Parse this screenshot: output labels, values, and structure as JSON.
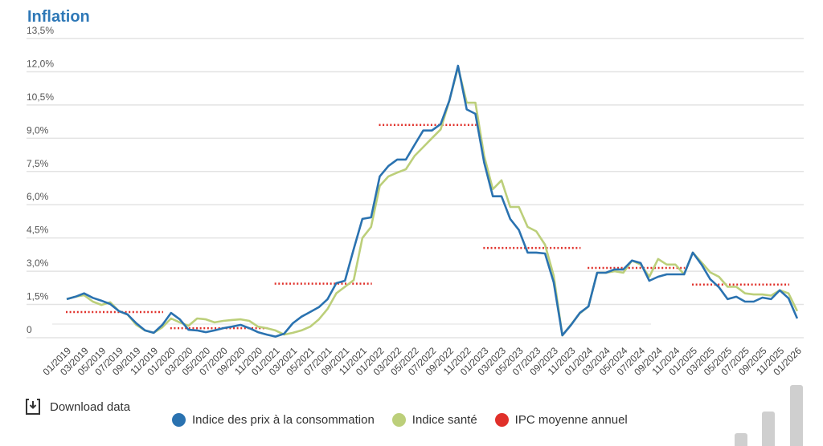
{
  "chart_data": {
    "type": "line",
    "title": "Inflation",
    "xlabel": "",
    "ylabel": "",
    "ylim": [
      0,
      13.5
    ],
    "y_ticks": [
      "0",
      "1,5%",
      "3,0%",
      "4,5%",
      "6,0%",
      "7,5%",
      "9,0%",
      "10,5%",
      "12,0%",
      "13,5%"
    ],
    "y_tick_values": [
      0,
      1.5,
      3,
      4.5,
      6,
      7.5,
      9,
      10.5,
      12,
      13.5
    ],
    "x_start": "01/2019",
    "x_end": "01/2026",
    "x_labels": [
      "01/2019",
      "03/2019",
      "05/2019",
      "07/2019",
      "09/2019",
      "11/2019",
      "01/2020",
      "03/2020",
      "05/2020",
      "07/2020",
      "09/2020",
      "11/2020",
      "01/2021",
      "03/2021",
      "05/2021",
      "07/2021",
      "09/2021",
      "11/2021",
      "01/2022",
      "03/2022",
      "05/2022",
      "07/2022",
      "09/2022",
      "11/2022",
      "01/2023",
      "03/2023",
      "05/2023",
      "07/2023",
      "09/2023",
      "11/2023",
      "01/2024",
      "03/2024",
      "05/2024",
      "07/2024",
      "09/2024",
      "11/2024",
      "01/2025",
      "03/2025",
      "05/2025",
      "07/2025",
      "09/2025",
      "11/2025",
      "01/2026"
    ],
    "grid": true,
    "legend_position": "bottom",
    "series": [
      {
        "name": "Indice des prix à la consommation",
        "color": "#2a72b0",
        "values": [
          1.74,
          1.85,
          2.0,
          1.8,
          1.67,
          1.52,
          1.2,
          1.05,
          0.65,
          0.33,
          0.22,
          0.58,
          1.12,
          0.83,
          0.36,
          0.33,
          0.25,
          0.33,
          0.43,
          0.5,
          0.58,
          0.43,
          0.25,
          0.14,
          0.05,
          0.18,
          0.65,
          0.95,
          1.16,
          1.38,
          1.74,
          2.46,
          2.57,
          4.0,
          5.36,
          5.43,
          7.28,
          7.75,
          8.04,
          8.04,
          8.7,
          9.35,
          9.35,
          9.64,
          10.7,
          12.27,
          10.3,
          10.1,
          7.9,
          6.38,
          6.38,
          5.36,
          4.86,
          3.84,
          3.84,
          3.8,
          2.5,
          0.11,
          0.58,
          1.12,
          1.41,
          2.93,
          2.93,
          3.08,
          3.08,
          3.48,
          3.37,
          2.57,
          2.75,
          2.86,
          2.86,
          2.86,
          3.84,
          3.3,
          2.64,
          2.28,
          1.74,
          1.85,
          1.63,
          1.63,
          1.81,
          1.74,
          2.14,
          1.78,
          0.87
        ]
      },
      {
        "name": "Indice santé",
        "color": "#bccf7a",
        "values": [
          1.74,
          1.85,
          1.92,
          1.63,
          1.48,
          1.6,
          1.2,
          1.05,
          0.58,
          0.33,
          0.22,
          0.47,
          0.87,
          0.69,
          0.54,
          0.87,
          0.83,
          0.69,
          0.76,
          0.8,
          0.83,
          0.76,
          0.5,
          0.43,
          0.33,
          0.14,
          0.22,
          0.33,
          0.5,
          0.83,
          1.3,
          2.0,
          2.3,
          2.6,
          4.5,
          5.0,
          6.85,
          7.28,
          7.45,
          7.6,
          8.2,
          8.6,
          9.0,
          9.4,
          10.7,
          12.2,
          10.6,
          10.6,
          8.2,
          6.7,
          7.1,
          5.9,
          5.9,
          5.0,
          4.8,
          4.2,
          2.8,
          0.1,
          0.6,
          1.1,
          1.41,
          2.93,
          2.93,
          3.0,
          2.93,
          3.48,
          3.3,
          2.75,
          3.55,
          3.3,
          3.3,
          2.86,
          3.84,
          3.4,
          2.95,
          2.75,
          2.3,
          2.3,
          2.0,
          1.95,
          1.95,
          1.9,
          2.14,
          2.0,
          1.2
        ]
      },
      {
        "name": "IPC moyenne annuel",
        "color": "#e0302a",
        "style": "dotted",
        "annual": [
          {
            "year": 2019,
            "value": 1.16
          },
          {
            "year": 2020,
            "value": 0.43
          },
          {
            "year": 2021,
            "value": 2.44
          },
          {
            "year": 2022,
            "value": 9.6
          },
          {
            "year": 2023,
            "value": 4.05
          },
          {
            "year": 2024,
            "value": 3.15
          },
          {
            "year": 2025,
            "value": 2.4
          }
        ]
      }
    ]
  },
  "download": {
    "label": "Download data",
    "icon": "download-icon"
  }
}
